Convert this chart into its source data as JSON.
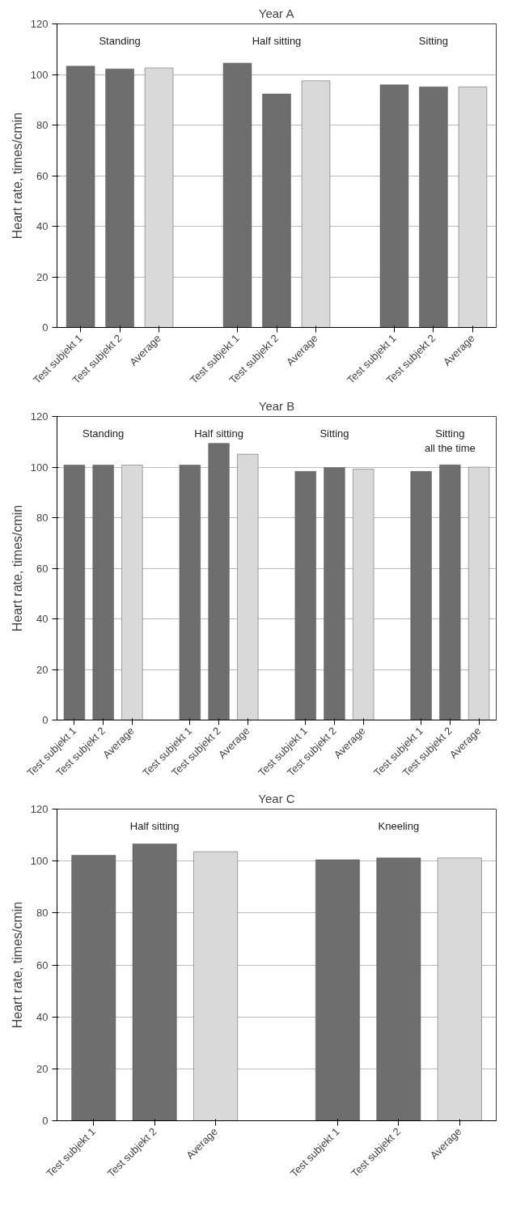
{
  "chart_data": [
    {
      "type": "bar",
      "title": "Year A",
      "ylabel": "Heart rate, times/cmin",
      "categories": [
        "Test subjekt 1",
        "Test subjekt 2",
        "Average",
        null,
        "Test subjekt 1",
        "Test subjekt 2",
        "Average",
        null,
        "Test subjekt 1",
        "Test subjekt 2",
        "Average"
      ],
      "values": [
        103.3,
        102.2,
        102.6,
        null,
        104.5,
        92.3,
        97.5,
        null,
        95.9,
        95.1,
        95.1
      ],
      "colors": [
        "#6e6e6e",
        "#6e6e6e",
        "#d9d9d9",
        null,
        "#6e6e6e",
        "#6e6e6e",
        "#d9d9d9",
        null,
        "#6e6e6e",
        "#6e6e6e",
        "#d9d9d9"
      ],
      "ylim": [
        0,
        120
      ],
      "yticks": [
        0,
        20,
        40,
        60,
        80,
        100,
        120
      ],
      "grid": "y",
      "annotations": [
        "Standing",
        "Half sitting",
        "Sitting"
      ]
    },
    {
      "type": "bar",
      "title": "Year B",
      "ylabel": "Heart rate, times/cmin",
      "categories": [
        "Test subjekt 1",
        "Test subjekt 2",
        "Average",
        null,
        "Test subjekt 1",
        "Test subjekt 2",
        "Average",
        null,
        "Test subjekt 1",
        "Test subjekt 2",
        "Average",
        null,
        "Test subjekt 1",
        "Test subjekt 2",
        "Average"
      ],
      "values": [
        100.8,
        100.8,
        100.8,
        null,
        100.8,
        109.4,
        105.1,
        null,
        98.3,
        99.8,
        99.2,
        null,
        98.3,
        100.9,
        100
      ],
      "colors": [
        "#6e6e6e",
        "#6e6e6e",
        "#d9d9d9",
        null,
        "#6e6e6e",
        "#6e6e6e",
        "#d9d9d9",
        null,
        "#6e6e6e",
        "#6e6e6e",
        "#d9d9d9",
        null,
        "#6e6e6e",
        "#6e6e6e",
        "#d9d9d9"
      ],
      "ylim": [
        0,
        120
      ],
      "yticks": [
        0,
        20,
        40,
        60,
        80,
        100,
        120
      ],
      "grid": "y",
      "annotations": [
        "Standing",
        "Half sitting",
        "Sitting",
        "Sitting\nall the time"
      ]
    },
    {
      "type": "bar",
      "title": "Year C",
      "ylabel": "Heart rate, times/cmin",
      "categories": [
        "Test subjekt 1",
        "Test subjekt 2",
        "Average",
        null,
        "Test subjekt 1",
        "Test subjekt 2",
        "Average"
      ],
      "values": [
        102.2,
        106.6,
        103.6,
        null,
        100.5,
        101.2,
        101.2
      ],
      "colors": [
        "#6e6e6e",
        "#6e6e6e",
        "#d9d9d9",
        null,
        "#6e6e6e",
        "#6e6e6e",
        "#d9d9d9"
      ],
      "ylim": [
        0,
        120
      ],
      "yticks": [
        0,
        20,
        40,
        60,
        80,
        100,
        120
      ],
      "grid": "y",
      "annotations": [
        "Half sitting",
        "Kneeling"
      ]
    }
  ]
}
